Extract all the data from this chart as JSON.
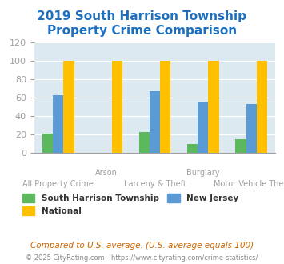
{
  "title": "2019 South Harrison Township\nProperty Crime Comparison",
  "categories": [
    "All Property Crime",
    "Arson",
    "Larceny & Theft",
    "Burglary",
    "Motor Vehicle Theft"
  ],
  "series": {
    "South Harrison Township": [
      21,
      0,
      23,
      10,
      15
    ],
    "New Jersey": [
      63,
      0,
      67,
      55,
      53
    ],
    "National": [
      100,
      100,
      100,
      100,
      100
    ]
  },
  "colors": {
    "South Harrison Township": "#5cb85c",
    "New Jersey": "#5b9bd5",
    "National": "#ffc000"
  },
  "ylim": [
    0,
    120
  ],
  "yticks": [
    0,
    20,
    40,
    60,
    80,
    100,
    120
  ],
  "xlabel_top": [
    "",
    "Arson",
    "",
    "Burglary",
    ""
  ],
  "xlabel_bottom": [
    "All Property Crime",
    "",
    "Larceny & Theft",
    "",
    "Motor Vehicle Theft"
  ],
  "title_color": "#1f6fbf",
  "title_fontsize": 11,
  "axis_color": "#a0a0a0",
  "tick_fontsize": 8,
  "bg_color": "#dce9f0",
  "footnote": "Compared to U.S. average. (U.S. average equals 100)",
  "footnote2": "© 2025 CityRating.com - https://www.cityrating.com/crime-statistics/",
  "footnote_color": "#cc6600",
  "footnote2_color": "#888888"
}
